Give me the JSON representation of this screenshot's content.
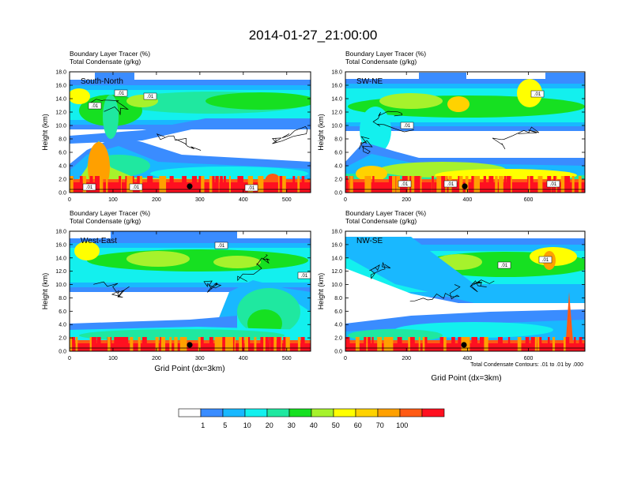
{
  "figure_title": "2014-01-27_21:00:00",
  "legend": {
    "colors": [
      "#ffffff",
      "#3a8cff",
      "#19b8ff",
      "#13f0ee",
      "#1fe8a0",
      "#16e021",
      "#a6f22c",
      "#ffff00",
      "#ffd200",
      "#ffa000",
      "#ff5a14",
      "#ff1020"
    ],
    "labels": [
      "1",
      "5",
      "10",
      "20",
      "30",
      "40",
      "50",
      "60",
      "70",
      "100"
    ]
  },
  "shared_xlabel": "Grid Point (dx=3km)",
  "contour_note": "Total Condensate Contours: .01 to .01 by .000",
  "chart_data": [
    {
      "type": "heatmap",
      "panel": "South-North",
      "title_line1": "Boundary Layer Tracer   (%)",
      "title_line2": "Total Condensate   (g/kg)",
      "ylabel": "Height (km)",
      "xlabel": "",
      "xlim": [
        0,
        555
      ],
      "ylim": [
        0,
        18
      ],
      "xticks": [
        0,
        100,
        200,
        300,
        400,
        500
      ],
      "yticks": [
        "0.0",
        "2.0",
        "4.0",
        "6.0",
        "8.0",
        "10.0",
        "12.0",
        "14.0",
        "16.0",
        "18.0"
      ],
      "contour_labels": [
        ".01",
        ".01",
        ".01",
        ".01",
        ".01",
        ".01"
      ],
      "marker_x": 277
    },
    {
      "type": "heatmap",
      "panel": "SW-NE",
      "title_line1": "Boundary Layer Tracer   (%)",
      "title_line2": "Total Condensate   (g/kg)",
      "ylabel": "Height (km)",
      "xlabel": "",
      "xlim": [
        0,
        785
      ],
      "ylim": [
        0,
        18
      ],
      "xticks": [
        0,
        200,
        400,
        600
      ],
      "yticks": [
        "0.0",
        "2.0",
        "4.0",
        "6.0",
        "8.0",
        "10.0",
        "12.0",
        "14.0",
        "16.0",
        "18.0"
      ],
      "contour_labels": [
        ".01",
        ".01",
        ".01",
        ".01",
        ".01"
      ],
      "marker_x": 393
    },
    {
      "type": "heatmap",
      "panel": "West-East",
      "title_line1": "Boundary Layer Tracer   (%)",
      "title_line2": "Total Condensate   (g/kg)",
      "ylabel": "Height (km)",
      "xlabel": "Grid Point (dx=3km)",
      "xlim": [
        0,
        555
      ],
      "ylim": [
        0,
        18
      ],
      "xticks": [
        0,
        100,
        200,
        300,
        400,
        500
      ],
      "yticks": [
        "0.0",
        "2.0",
        "4.0",
        "6.0",
        "8.0",
        "10.0",
        "12.0",
        "14.0",
        "16.0",
        "18.0"
      ],
      "contour_labels": [
        ".01",
        ".01"
      ],
      "marker_x": 277
    },
    {
      "type": "heatmap",
      "panel": "NW-SE",
      "title_line1": "Boundary Layer Tracer   (%)",
      "title_line2": "Total Condensate   (g/kg)",
      "ylabel": "Height (km)",
      "xlabel": "Grid Point (dx=3km)",
      "xlim": [
        0,
        785
      ],
      "ylim": [
        0,
        18
      ],
      "xticks": [
        0,
        200,
        400,
        600
      ],
      "yticks": [
        "0.0",
        "2.0",
        "4.0",
        "6.0",
        "8.0",
        "10.0",
        "12.0",
        "14.0",
        "16.0",
        "18.0"
      ],
      "contour_labels": [
        ".01",
        ".01"
      ],
      "marker_x": 393
    }
  ]
}
